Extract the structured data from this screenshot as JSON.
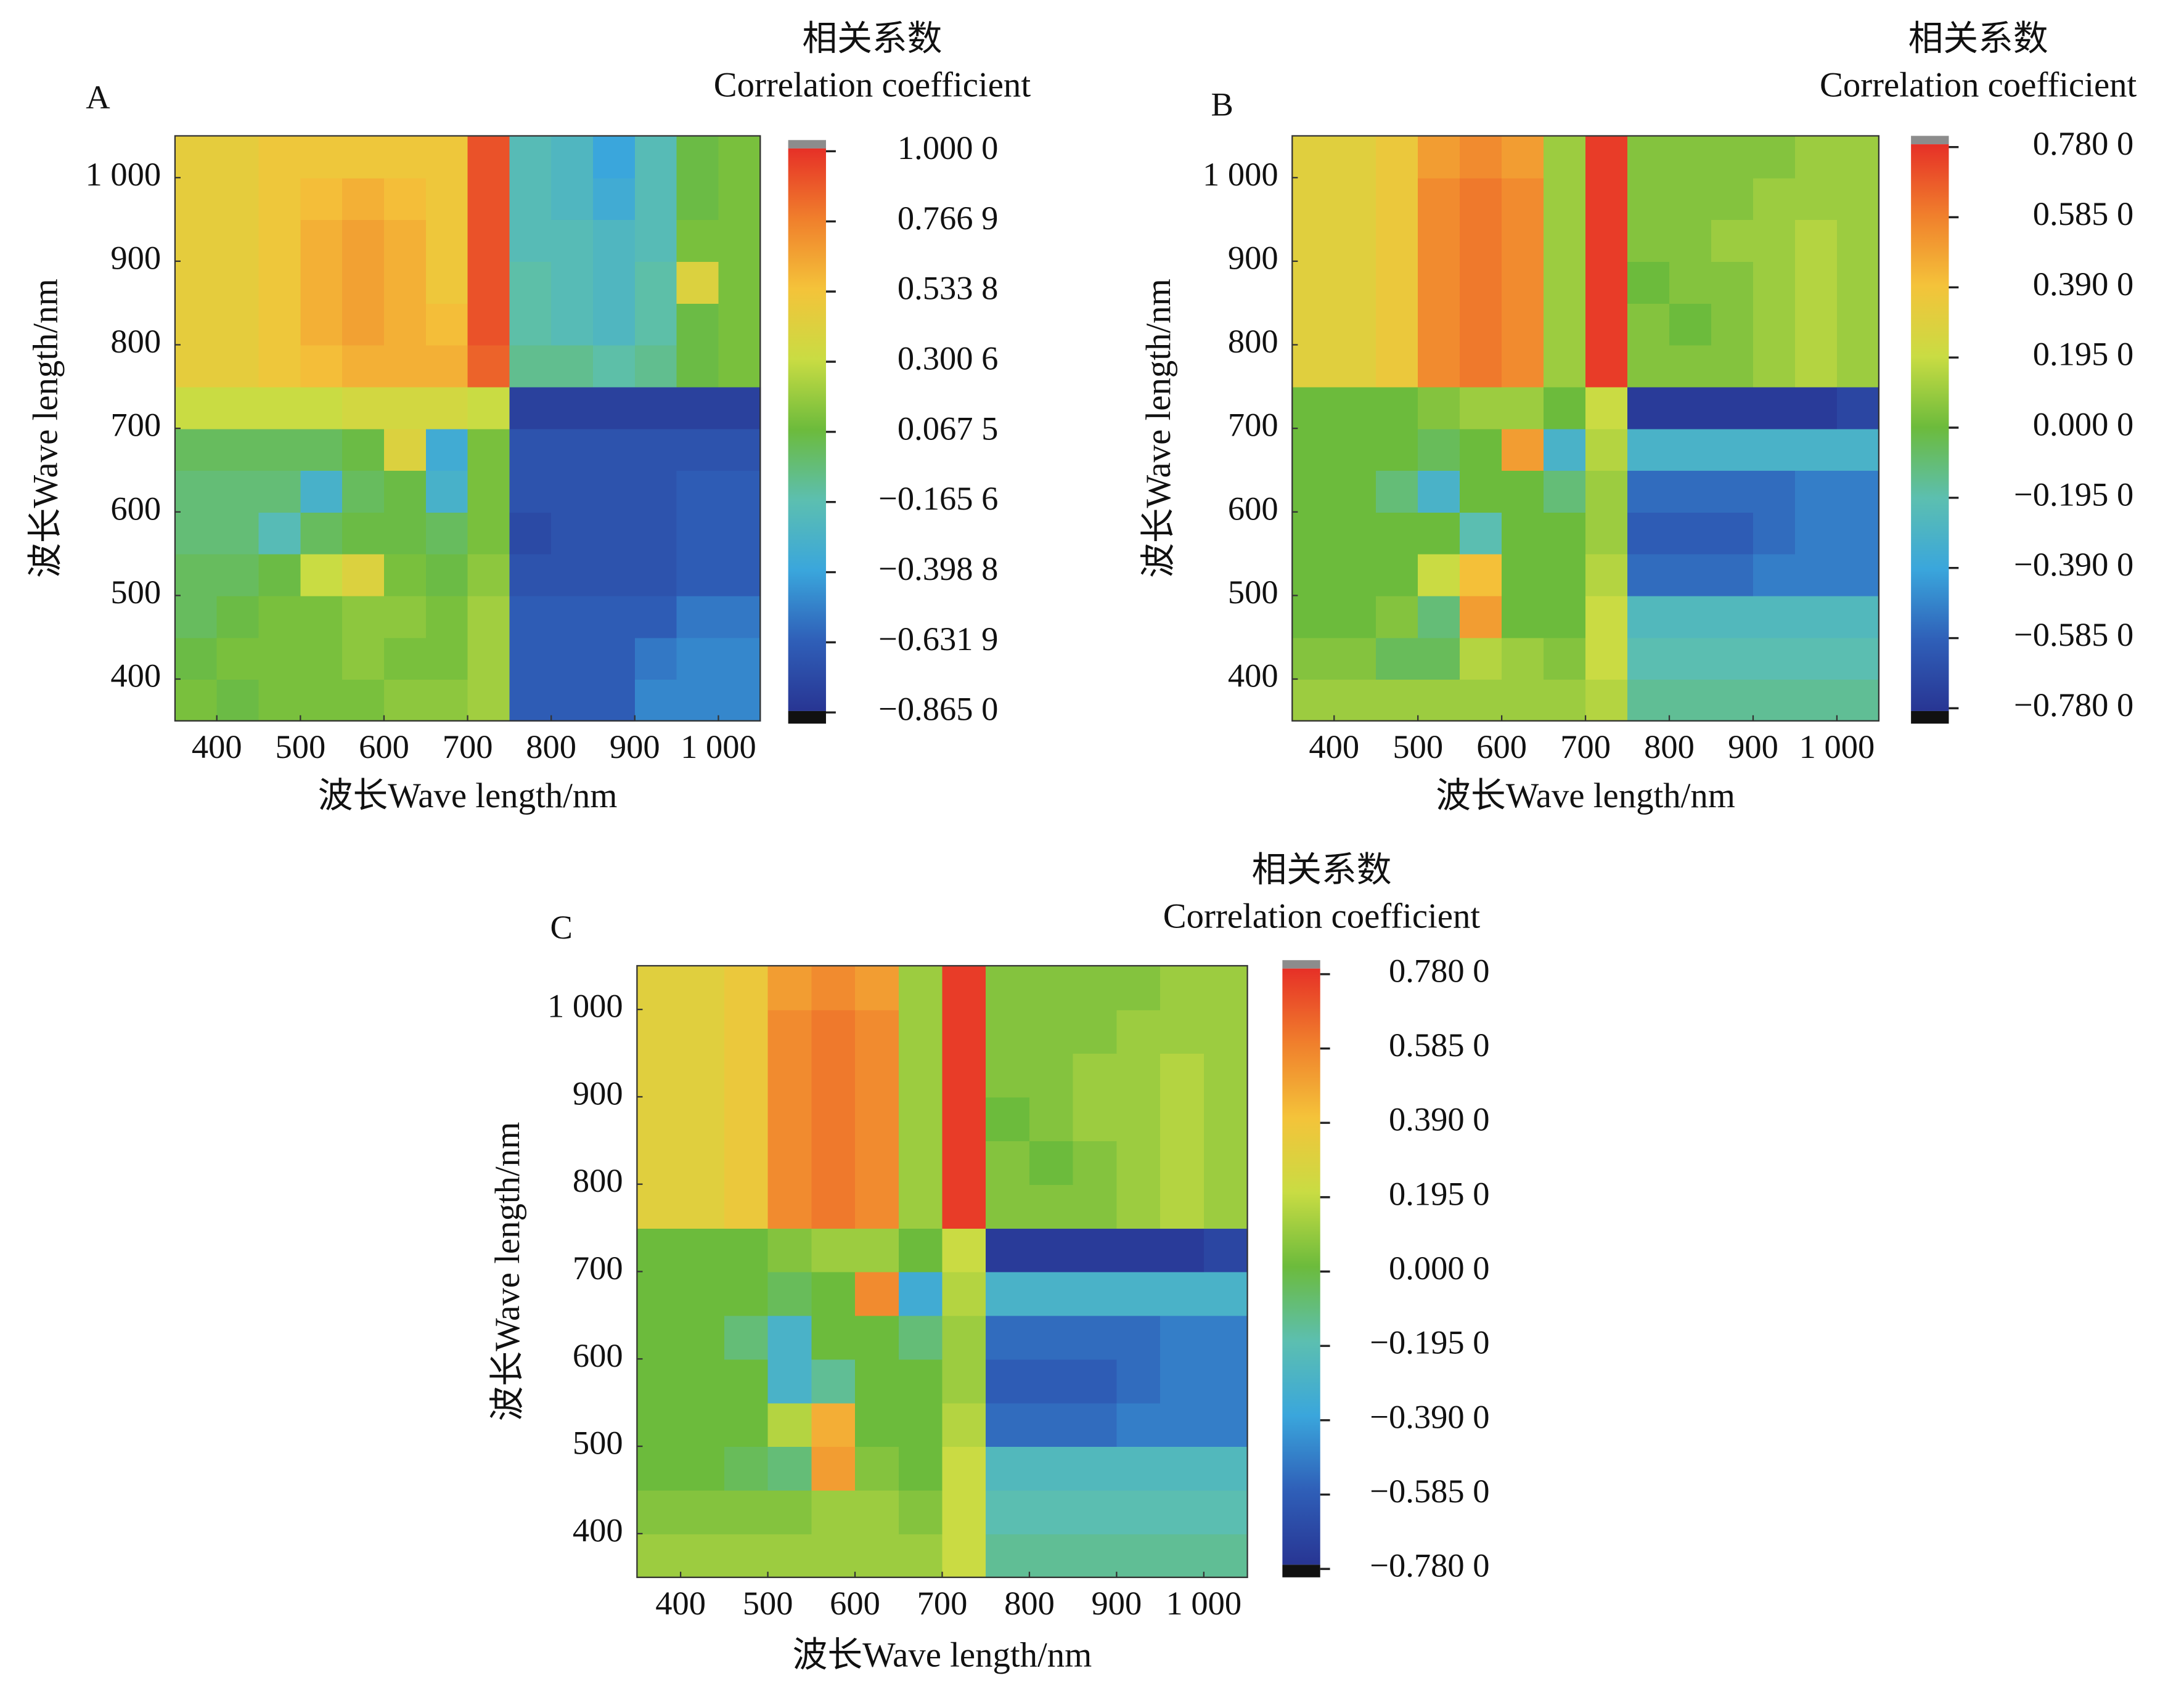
{
  "chart_data": [
    {
      "type": "heatmap",
      "panel_label": "A",
      "title": "相关系数",
      "subtitle": "Correlation coefficient",
      "xlabel": "波长Wave length/nm",
      "ylabel": "波长Wave length/nm",
      "xlim": [
        350,
        1050
      ],
      "ylim": [
        350,
        1050
      ],
      "xticks": [
        400,
        500,
        600,
        700,
        800,
        900,
        {
          "value": 1000,
          "label": "1 000"
        }
      ],
      "yticks": [
        400,
        500,
        600,
        700,
        800,
        900,
        {
          "value": 1000,
          "label": "1 000"
        }
      ],
      "x": [
        375,
        425,
        475,
        525,
        575,
        625,
        675,
        725,
        775,
        825,
        875,
        925,
        975,
        1025
      ],
      "y": [
        375,
        425,
        475,
        525,
        575,
        625,
        675,
        725,
        775,
        825,
        875,
        925,
        975,
        1025
      ],
      "values": [
        [
          0.1,
          0.05,
          0.1,
          0.1,
          0.1,
          0.15,
          0.15,
          0.2,
          -0.65,
          -0.65,
          -0.65,
          -0.5,
          -0.5,
          -0.5
        ],
        [
          0.05,
          0.1,
          0.1,
          0.1,
          0.15,
          0.1,
          0.1,
          0.2,
          -0.65,
          -0.65,
          -0.65,
          -0.55,
          -0.5,
          -0.5
        ],
        [
          0.0,
          0.05,
          0.1,
          0.1,
          0.15,
          0.15,
          0.1,
          0.2,
          -0.65,
          -0.65,
          -0.65,
          -0.65,
          -0.55,
          -0.55
        ],
        [
          0.0,
          0.0,
          0.05,
          0.3,
          0.4,
          0.1,
          0.05,
          0.15,
          -0.7,
          -0.7,
          -0.7,
          -0.7,
          -0.65,
          -0.65
        ],
        [
          -0.05,
          -0.05,
          -0.2,
          0.0,
          0.05,
          0.05,
          0.0,
          0.1,
          -0.75,
          -0.7,
          -0.7,
          -0.7,
          -0.65,
          -0.65
        ],
        [
          -0.05,
          -0.05,
          -0.05,
          -0.3,
          0.0,
          0.05,
          -0.3,
          0.1,
          -0.7,
          -0.7,
          -0.7,
          -0.7,
          -0.65,
          -0.65
        ],
        [
          0.0,
          0.0,
          0.0,
          0.0,
          0.05,
          0.4,
          -0.35,
          0.1,
          -0.7,
          -0.7,
          -0.7,
          -0.7,
          -0.7,
          -0.7
        ],
        [
          0.3,
          0.3,
          0.3,
          0.3,
          0.35,
          0.35,
          0.35,
          0.3,
          -0.8,
          -0.8,
          -0.8,
          -0.8,
          -0.8,
          -0.8
        ],
        [
          0.45,
          0.45,
          0.5,
          0.55,
          0.6,
          0.6,
          0.6,
          0.85,
          -0.1,
          -0.1,
          -0.15,
          -0.1,
          0.05,
          0.1
        ],
        [
          0.45,
          0.45,
          0.5,
          0.6,
          0.65,
          0.6,
          0.55,
          0.9,
          -0.15,
          -0.2,
          -0.25,
          -0.15,
          0.05,
          0.1
        ],
        [
          0.45,
          0.45,
          0.5,
          0.6,
          0.65,
          0.6,
          0.5,
          0.9,
          -0.15,
          -0.2,
          -0.25,
          -0.15,
          0.4,
          0.1
        ],
        [
          0.45,
          0.45,
          0.5,
          0.6,
          0.65,
          0.6,
          0.5,
          0.9,
          -0.2,
          -0.2,
          -0.25,
          -0.2,
          0.1,
          0.1
        ],
        [
          0.45,
          0.45,
          0.5,
          0.55,
          0.6,
          0.55,
          0.5,
          0.9,
          -0.2,
          -0.25,
          -0.35,
          -0.2,
          0.05,
          0.1
        ],
        [
          0.45,
          0.45,
          0.5,
          0.5,
          0.5,
          0.5,
          0.5,
          0.9,
          -0.2,
          -0.25,
          -0.4,
          -0.2,
          0.05,
          0.1
        ]
      ],
      "clim": [
        -0.865,
        1.0
      ],
      "colormap": [
        "#283593",
        "#2f5fb8",
        "#3aa6dc",
        "#5cbfb0",
        "#6cbb3c",
        "#c9dc43",
        "#f4c33a",
        "#f07f2c",
        "#e63027"
      ],
      "colorbar_ticks": [
        {
          "value": 1.0,
          "label": "1.000 0"
        },
        {
          "value": 0.7669,
          "label": "0.766 9"
        },
        {
          "value": 0.5338,
          "label": "0.533 8"
        },
        {
          "value": 0.3006,
          "label": "0.300 6"
        },
        {
          "value": 0.0675,
          "label": "0.067 5"
        },
        {
          "value": -0.1656,
          "label": "−0.165 6"
        },
        {
          "value": -0.3988,
          "label": "−0.398 8"
        },
        {
          "value": -0.6319,
          "label": "−0.631 9"
        },
        {
          "value": -0.865,
          "label": "−0.865 0"
        }
      ]
    },
    {
      "type": "heatmap",
      "panel_label": "B",
      "title": "相关系数",
      "subtitle": "Correlation coefficient",
      "xlabel": "波长Wave length/nm",
      "ylabel": "波长Wave length/nm",
      "xlim": [
        350,
        1050
      ],
      "ylim": [
        350,
        1050
      ],
      "xticks": [
        400,
        500,
        600,
        700,
        800,
        900,
        {
          "value": 1000,
          "label": "1 000"
        }
      ],
      "yticks": [
        400,
        500,
        600,
        700,
        800,
        900,
        {
          "value": 1000,
          "label": "1 000"
        }
      ],
      "x": [
        375,
        425,
        475,
        525,
        575,
        625,
        675,
        725,
        775,
        825,
        875,
        925,
        975,
        1025
      ],
      "y": [
        375,
        425,
        475,
        525,
        575,
        625,
        675,
        725,
        775,
        825,
        875,
        925,
        975,
        1025
      ],
      "values": [
        [
          0.1,
          0.1,
          0.1,
          0.1,
          0.1,
          0.1,
          0.1,
          0.15,
          -0.15,
          -0.15,
          -0.15,
          -0.15,
          -0.15,
          -0.15
        ],
        [
          0.05,
          0.05,
          -0.05,
          -0.05,
          0.15,
          0.1,
          0.05,
          0.2,
          -0.2,
          -0.2,
          -0.2,
          -0.2,
          -0.2,
          -0.2
        ],
        [
          0.0,
          0.0,
          0.05,
          -0.1,
          0.5,
          0.0,
          0.0,
          0.2,
          -0.25,
          -0.25,
          -0.25,
          -0.25,
          -0.25,
          -0.25
        ],
        [
          0.0,
          0.0,
          0.0,
          0.2,
          0.4,
          0.0,
          0.0,
          0.15,
          -0.55,
          -0.55,
          -0.55,
          -0.5,
          -0.5,
          -0.5
        ],
        [
          0.0,
          0.0,
          0.0,
          0.0,
          -0.2,
          0.0,
          0.0,
          0.1,
          -0.6,
          -0.6,
          -0.6,
          -0.55,
          -0.5,
          -0.5
        ],
        [
          0.0,
          0.0,
          -0.1,
          -0.3,
          0.0,
          0.0,
          -0.1,
          0.1,
          -0.55,
          -0.55,
          -0.55,
          -0.55,
          -0.5,
          -0.5
        ],
        [
          0.0,
          0.0,
          0.0,
          -0.05,
          0.0,
          0.5,
          -0.3,
          0.15,
          -0.3,
          -0.3,
          -0.3,
          -0.3,
          -0.3,
          -0.3
        ],
        [
          0.0,
          0.0,
          0.0,
          0.05,
          0.1,
          0.1,
          0.0,
          0.2,
          -0.75,
          -0.75,
          -0.75,
          -0.75,
          -0.75,
          -0.7
        ],
        [
          0.3,
          0.3,
          0.35,
          0.55,
          0.6,
          0.55,
          0.1,
          0.75,
          0.05,
          0.05,
          0.05,
          0.1,
          0.15,
          0.1
        ],
        [
          0.3,
          0.3,
          0.35,
          0.55,
          0.6,
          0.55,
          0.1,
          0.75,
          0.05,
          0.0,
          0.05,
          0.1,
          0.15,
          0.1
        ],
        [
          0.3,
          0.3,
          0.35,
          0.55,
          0.6,
          0.55,
          0.1,
          0.75,
          0.0,
          0.05,
          0.05,
          0.1,
          0.15,
          0.1
        ],
        [
          0.3,
          0.3,
          0.35,
          0.55,
          0.6,
          0.55,
          0.1,
          0.75,
          0.05,
          0.05,
          0.1,
          0.1,
          0.15,
          0.1
        ],
        [
          0.3,
          0.3,
          0.35,
          0.55,
          0.6,
          0.55,
          0.1,
          0.75,
          0.05,
          0.05,
          0.05,
          0.1,
          0.1,
          0.1
        ],
        [
          0.3,
          0.3,
          0.35,
          0.5,
          0.55,
          0.5,
          0.1,
          0.75,
          0.05,
          0.05,
          0.05,
          0.05,
          0.1,
          0.1
        ]
      ],
      "clim": [
        -0.78,
        0.78
      ],
      "colormap": [
        "#283593",
        "#2f5fb8",
        "#3aa6dc",
        "#5cbfb0",
        "#6cbb3c",
        "#c9dc43",
        "#f4c33a",
        "#f07f2c",
        "#e63027"
      ],
      "colorbar_ticks": [
        {
          "value": 0.78,
          "label": "0.780 0"
        },
        {
          "value": 0.585,
          "label": "0.585 0"
        },
        {
          "value": 0.39,
          "label": "0.390 0"
        },
        {
          "value": 0.195,
          "label": "0.195 0"
        },
        {
          "value": 0,
          "label": "0.000 0"
        },
        {
          "value": -0.195,
          "label": "−0.195 0"
        },
        {
          "value": -0.39,
          "label": "−0.390 0"
        },
        {
          "value": -0.585,
          "label": "−0.585 0"
        },
        {
          "value": -0.78,
          "label": "−0.780 0"
        }
      ]
    },
    {
      "type": "heatmap",
      "panel_label": "C",
      "title": "相关系数",
      "subtitle": "Correlation coefficient",
      "xlabel": "波长Wave length/nm",
      "ylabel": "波长Wave length/nm",
      "xlim": [
        350,
        1050
      ],
      "ylim": [
        350,
        1050
      ],
      "xticks": [
        400,
        500,
        600,
        700,
        800,
        900,
        {
          "value": 1000,
          "label": "1 000"
        }
      ],
      "yticks": [
        400,
        500,
        600,
        700,
        800,
        900,
        {
          "value": 1000,
          "label": "1 000"
        }
      ],
      "x": [
        375,
        425,
        475,
        525,
        575,
        625,
        675,
        725,
        775,
        825,
        875,
        925,
        975,
        1025
      ],
      "y": [
        375,
        425,
        475,
        525,
        575,
        625,
        675,
        725,
        775,
        825,
        875,
        925,
        975,
        1025
      ],
      "values": [
        [
          0.1,
          0.1,
          0.1,
          0.1,
          0.1,
          0.1,
          0.1,
          0.2,
          -0.15,
          -0.15,
          -0.15,
          -0.15,
          -0.15,
          -0.15
        ],
        [
          0.05,
          0.05,
          0.05,
          0.05,
          0.1,
          0.1,
          0.05,
          0.2,
          -0.2,
          -0.2,
          -0.2,
          -0.2,
          -0.2,
          -0.2
        ],
        [
          0.0,
          0.0,
          -0.05,
          -0.1,
          0.5,
          0.05,
          0.0,
          0.2,
          -0.25,
          -0.25,
          -0.25,
          -0.25,
          -0.25,
          -0.25
        ],
        [
          0.0,
          0.0,
          0.0,
          0.15,
          0.45,
          0.0,
          0.0,
          0.15,
          -0.55,
          -0.55,
          -0.55,
          -0.5,
          -0.5,
          -0.5
        ],
        [
          0.0,
          0.0,
          0.0,
          -0.3,
          -0.15,
          0.0,
          0.0,
          0.1,
          -0.6,
          -0.6,
          -0.6,
          -0.55,
          -0.5,
          -0.5
        ],
        [
          0.0,
          0.0,
          -0.1,
          -0.3,
          0.0,
          0.0,
          -0.1,
          0.1,
          -0.55,
          -0.55,
          -0.55,
          -0.55,
          -0.5,
          -0.5
        ],
        [
          0.0,
          0.0,
          0.0,
          -0.05,
          0.0,
          0.55,
          -0.35,
          0.15,
          -0.3,
          -0.3,
          -0.3,
          -0.3,
          -0.3,
          -0.3
        ],
        [
          0.0,
          0.0,
          0.0,
          0.05,
          0.1,
          0.1,
          0.0,
          0.2,
          -0.75,
          -0.75,
          -0.75,
          -0.75,
          -0.75,
          -0.7
        ],
        [
          0.3,
          0.3,
          0.35,
          0.55,
          0.6,
          0.55,
          0.1,
          0.75,
          0.05,
          0.05,
          0.05,
          0.1,
          0.15,
          0.1
        ],
        [
          0.3,
          0.3,
          0.35,
          0.55,
          0.6,
          0.55,
          0.1,
          0.75,
          0.05,
          0.0,
          0.05,
          0.1,
          0.15,
          0.1
        ],
        [
          0.3,
          0.3,
          0.35,
          0.55,
          0.6,
          0.55,
          0.1,
          0.75,
          0.0,
          0.05,
          0.1,
          0.1,
          0.15,
          0.1
        ],
        [
          0.3,
          0.3,
          0.35,
          0.55,
          0.6,
          0.55,
          0.1,
          0.75,
          0.05,
          0.05,
          0.1,
          0.1,
          0.15,
          0.1
        ],
        [
          0.3,
          0.3,
          0.35,
          0.55,
          0.6,
          0.55,
          0.1,
          0.75,
          0.05,
          0.05,
          0.05,
          0.1,
          0.1,
          0.1
        ],
        [
          0.3,
          0.3,
          0.35,
          0.5,
          0.55,
          0.5,
          0.1,
          0.75,
          0.05,
          0.05,
          0.05,
          0.05,
          0.1,
          0.1
        ]
      ],
      "clim": [
        -0.78,
        0.78
      ],
      "colormap": [
        "#283593",
        "#2f5fb8",
        "#3aa6dc",
        "#5cbfb0",
        "#6cbb3c",
        "#c9dc43",
        "#f4c33a",
        "#f07f2c",
        "#e63027"
      ],
      "colorbar_ticks": [
        {
          "value": 0.78,
          "label": "0.780 0"
        },
        {
          "value": 0.585,
          "label": "0.585 0"
        },
        {
          "value": 0.39,
          "label": "0.390 0"
        },
        {
          "value": 0.195,
          "label": "0.195 0"
        },
        {
          "value": 0,
          "label": "0.000 0"
        },
        {
          "value": -0.195,
          "label": "−0.195 0"
        },
        {
          "value": -0.39,
          "label": "−0.390 0"
        },
        {
          "value": -0.585,
          "label": "−0.585 0"
        },
        {
          "value": -0.78,
          "label": "−0.780 0"
        }
      ]
    }
  ]
}
